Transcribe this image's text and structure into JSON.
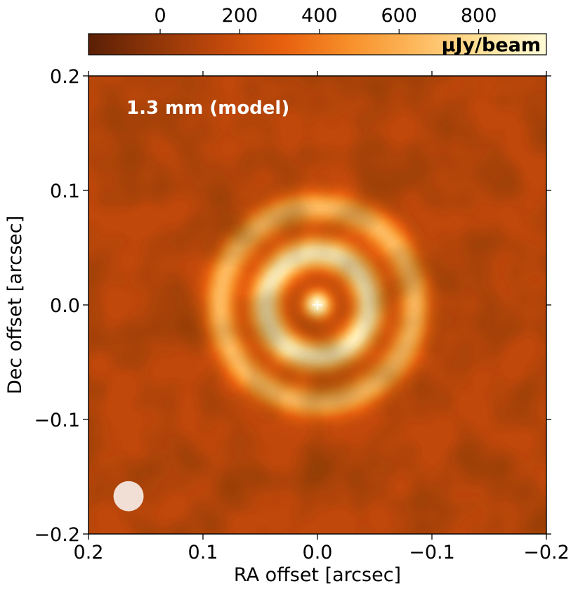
{
  "chart_data": {
    "type": "heatmap",
    "title": "",
    "annotation": "1.3 mm (model)",
    "xlabel": "RA offset [arcsec]",
    "ylabel": "Dec offset [arcsec]",
    "xlim": [
      0.2,
      -0.2
    ],
    "ylim": [
      -0.2,
      0.2
    ],
    "x_ticks": [
      0.2,
      0.1,
      0.0,
      -0.1,
      -0.2
    ],
    "x_tick_labels": [
      "0.2",
      "0.1",
      "0.0",
      "−0.1",
      "−0.2"
    ],
    "y_ticks": [
      0.2,
      0.1,
      0.0,
      -0.1,
      -0.2
    ],
    "y_tick_labels": [
      "0.2",
      "0.1",
      "0.0",
      "−0.1",
      "−0.2"
    ],
    "colorbar": {
      "label": "μJy/beam",
      "range": [
        -180,
        970
      ],
      "ticks": [
        0,
        200,
        400,
        600,
        800
      ],
      "tick_labels": [
        "0",
        "200",
        "400",
        "600",
        "800"
      ],
      "placement": "top",
      "colormap": [
        "#5a1f05",
        "#8e3508",
        "#c0480b",
        "#e8610f",
        "#f7902a",
        "#fdb85c",
        "#ffe199",
        "#fffbd6"
      ]
    },
    "image_features": {
      "center_marker": [
        0.0,
        0.0
      ],
      "central_peak_radius_arcsec": 0.012,
      "rings": [
        {
          "radius_arcsec": 0.045,
          "peak_ujy_per_beam": 900
        },
        {
          "radius_arcsec": 0.085,
          "peak_ujy_per_beam": 650
        }
      ],
      "background_level_ujy_per_beam": 150
    },
    "beam": {
      "center": [
        0.165,
        -0.167
      ],
      "radius_arcsec": 0.0095,
      "color": "#f1dfd6"
    },
    "grid": false
  }
}
